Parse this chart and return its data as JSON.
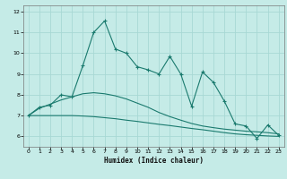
{
  "xlabel": "Humidex (Indice chaleur)",
  "background_color": "#c5ebe7",
  "grid_color": "#a8d8d4",
  "line_color": "#1a7a6e",
  "x_data": [
    0,
    1,
    2,
    3,
    4,
    5,
    6,
    7,
    8,
    9,
    10,
    11,
    12,
    13,
    14,
    15,
    16,
    17,
    18,
    19,
    20,
    21,
    22,
    23
  ],
  "y_main": [
    7.0,
    7.4,
    7.5,
    8.0,
    7.9,
    9.4,
    11.0,
    11.55,
    10.2,
    10.0,
    9.35,
    9.2,
    9.0,
    9.85,
    9.0,
    7.45,
    9.1,
    8.6,
    7.7,
    6.6,
    6.5,
    5.9,
    6.55,
    6.05
  ],
  "y_curve": [
    7.0,
    7.35,
    7.55,
    7.75,
    7.9,
    8.05,
    8.1,
    8.05,
    7.95,
    7.8,
    7.6,
    7.4,
    7.15,
    6.95,
    6.78,
    6.62,
    6.5,
    6.42,
    6.35,
    6.3,
    6.25,
    6.22,
    6.18,
    6.12
  ],
  "y_linear": [
    7.0,
    7.0,
    7.0,
    7.0,
    7.0,
    6.98,
    6.95,
    6.9,
    6.85,
    6.78,
    6.72,
    6.65,
    6.58,
    6.52,
    6.45,
    6.38,
    6.32,
    6.25,
    6.18,
    6.12,
    6.08,
    6.05,
    6.02,
    6.0
  ],
  "ylim": [
    5.5,
    12.3
  ],
  "yticks": [
    6,
    7,
    8,
    9,
    10,
    11,
    12
  ],
  "xlim": [
    -0.5,
    23.5
  ],
  "xticks": [
    0,
    1,
    2,
    3,
    4,
    5,
    6,
    7,
    8,
    9,
    10,
    11,
    12,
    13,
    14,
    15,
    16,
    17,
    18,
    19,
    20,
    21,
    22,
    23
  ]
}
